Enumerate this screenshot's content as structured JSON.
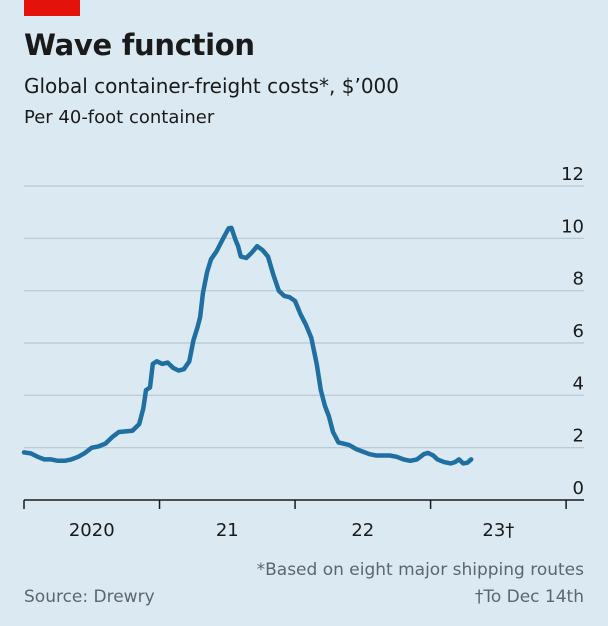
{
  "header": {
    "title": "Wave function",
    "subtitle": "Global container-freight costs*, $’000",
    "note": "Per 40-foot container"
  },
  "footer": {
    "footnote1": "*Based on eight major shipping routes",
    "footnote2": "†To Dec 14th",
    "source": "Source: Drewry"
  },
  "colors": {
    "background": "#dbe9f2",
    "line": "#1f6fa3",
    "brand": "#e3120b",
    "grid": "#b7c6d1"
  },
  "chart_data": {
    "type": "line",
    "title": "Wave function",
    "subtitle": "Global container-freight costs*, $’000",
    "ylabel": "Per 40-foot container",
    "ylim": [
      0,
      12
    ],
    "yticks": [
      0,
      2,
      4,
      6,
      8,
      10,
      12
    ],
    "ytick_labels": [
      "0",
      "2",
      "4",
      "6",
      "8",
      "10",
      "12"
    ],
    "xlim": [
      2019.7,
      2023.95
    ],
    "xticks": [
      2019.7,
      2020.7,
      2021.7,
      2022.7,
      2023.7
    ],
    "xtick_labels": [
      {
        "x": 2020.2,
        "label": "2020"
      },
      {
        "x": 2021.2,
        "label": "21"
      },
      {
        "x": 2022.2,
        "label": "22"
      },
      {
        "x": 2023.2,
        "label": "23†"
      }
    ],
    "grid": true,
    "series": [
      {
        "values": [
          [
            2019.7,
            1.82
          ],
          [
            2019.75,
            1.78
          ],
          [
            2019.8,
            1.65
          ],
          [
            2019.85,
            1.55
          ],
          [
            2019.9,
            1.55
          ],
          [
            2019.95,
            1.5
          ],
          [
            2020.0,
            1.5
          ],
          [
            2020.05,
            1.55
          ],
          [
            2020.1,
            1.65
          ],
          [
            2020.15,
            1.8
          ],
          [
            2020.2,
            2.0
          ],
          [
            2020.25,
            2.05
          ],
          [
            2020.3,
            2.15
          ],
          [
            2020.35,
            2.4
          ],
          [
            2020.4,
            2.6
          ],
          [
            2020.45,
            2.62
          ],
          [
            2020.5,
            2.65
          ],
          [
            2020.55,
            2.9
          ],
          [
            2020.58,
            3.5
          ],
          [
            2020.6,
            4.2
          ],
          [
            2020.63,
            4.3
          ],
          [
            2020.65,
            5.2
          ],
          [
            2020.68,
            5.3
          ],
          [
            2020.72,
            5.2
          ],
          [
            2020.76,
            5.25
          ],
          [
            2020.8,
            5.05
          ],
          [
            2020.84,
            4.95
          ],
          [
            2020.88,
            5.0
          ],
          [
            2020.92,
            5.3
          ],
          [
            2020.95,
            6.1
          ],
          [
            2020.98,
            6.6
          ],
          [
            2021.0,
            7.0
          ],
          [
            2021.02,
            7.9
          ],
          [
            2021.05,
            8.7
          ],
          [
            2021.08,
            9.2
          ],
          [
            2021.12,
            9.5
          ],
          [
            2021.15,
            9.8
          ],
          [
            2021.18,
            10.1
          ],
          [
            2021.21,
            10.38
          ],
          [
            2021.23,
            10.4
          ],
          [
            2021.26,
            9.95
          ],
          [
            2021.28,
            9.7
          ],
          [
            2021.3,
            9.3
          ],
          [
            2021.34,
            9.25
          ],
          [
            2021.38,
            9.45
          ],
          [
            2021.42,
            9.7
          ],
          [
            2021.46,
            9.55
          ],
          [
            2021.5,
            9.3
          ],
          [
            2021.54,
            8.6
          ],
          [
            2021.58,
            8.0
          ],
          [
            2021.62,
            7.8
          ],
          [
            2021.66,
            7.75
          ],
          [
            2021.7,
            7.6
          ],
          [
            2021.74,
            7.1
          ],
          [
            2021.78,
            6.7
          ],
          [
            2021.82,
            6.2
          ],
          [
            2021.86,
            5.2
          ],
          [
            2021.89,
            4.2
          ],
          [
            2021.92,
            3.6
          ],
          [
            2021.95,
            3.2
          ],
          [
            2021.98,
            2.6
          ],
          [
            2022.02,
            2.2
          ],
          [
            2022.06,
            2.15
          ],
          [
            2022.1,
            2.1
          ],
          [
            2022.15,
            1.95
          ],
          [
            2022.2,
            1.85
          ],
          [
            2022.25,
            1.75
          ],
          [
            2022.3,
            1.7
          ],
          [
            2022.35,
            1.7
          ],
          [
            2022.4,
            1.7
          ],
          [
            2022.45,
            1.65
          ],
          [
            2022.5,
            1.55
          ],
          [
            2022.55,
            1.5
          ],
          [
            2022.6,
            1.55
          ],
          [
            2022.65,
            1.75
          ],
          [
            2022.68,
            1.8
          ],
          [
            2022.72,
            1.7
          ],
          [
            2022.75,
            1.55
          ],
          [
            2022.8,
            1.45
          ],
          [
            2022.85,
            1.4
          ],
          [
            2022.88,
            1.45
          ],
          [
            2022.91,
            1.55
          ],
          [
            2022.94,
            1.4
          ],
          [
            2022.97,
            1.42
          ],
          [
            2023.0,
            1.55
          ]
        ]
      }
    ]
  }
}
